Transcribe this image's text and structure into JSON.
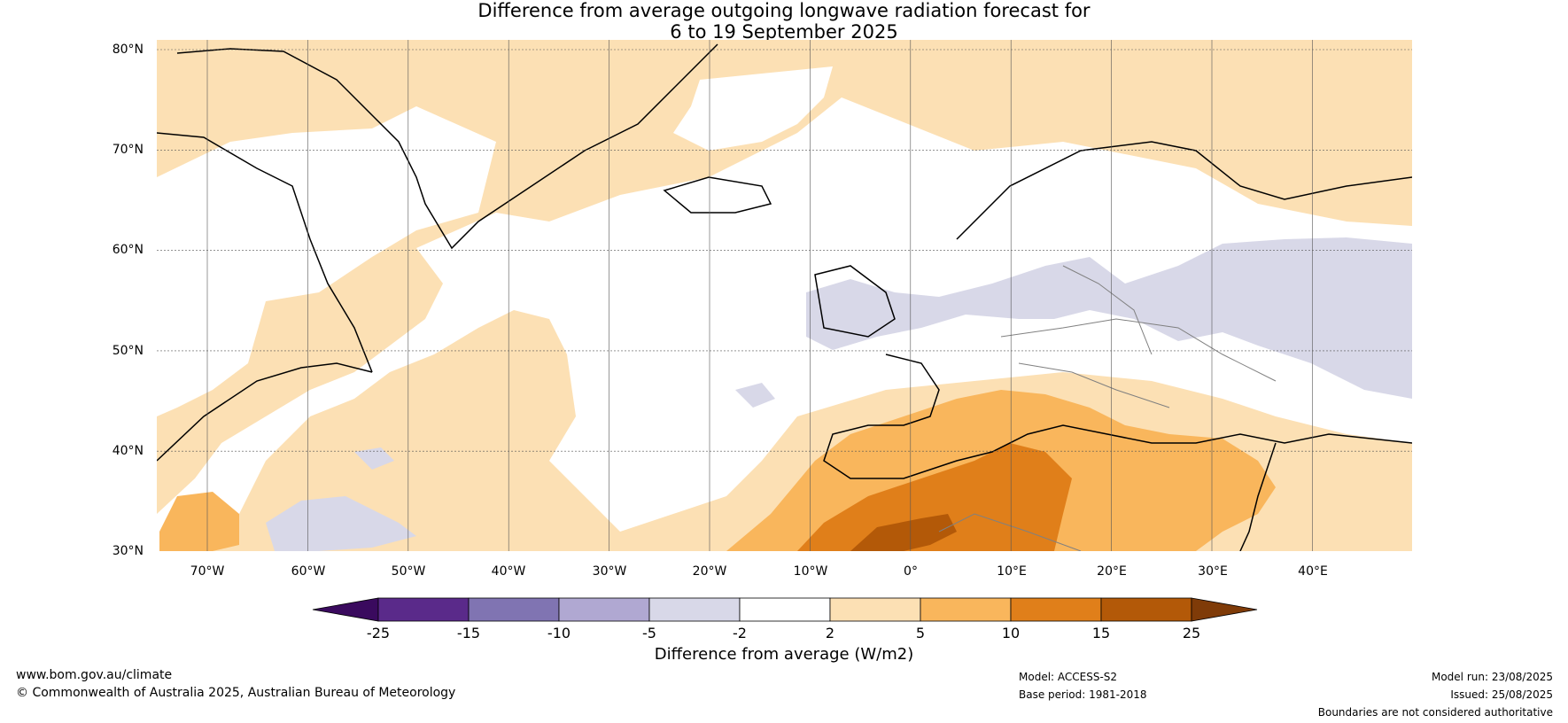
{
  "title_line1": "Difference from average outgoing longwave radiation forecast for",
  "title_line2": "6 to 19 September 2025",
  "lat_labels": [
    "80°N",
    "70°N",
    "60°N",
    "50°N",
    "40°N",
    "30°N"
  ],
  "lon_labels": [
    "70°W",
    "60°W",
    "50°W",
    "40°W",
    "30°W",
    "20°W",
    "10°W",
    "0°",
    "10°E",
    "20°E",
    "30°E",
    "40°E"
  ],
  "colorbar": {
    "ticks": [
      "-25",
      "-15",
      "-10",
      "-5",
      "-2",
      "2",
      "5",
      "10",
      "15",
      "25"
    ],
    "colors": [
      "#3a0a5e",
      "#5a2a8a",
      "#8074b2",
      "#b0a8d2",
      "#d8d8e8",
      "#ffffff",
      "#fce0b4",
      "#f9b65c",
      "#e07f1a",
      "#b35908",
      "#7f3b08"
    ],
    "label": "Difference from average (W/m2)"
  },
  "footer": {
    "url": "www.bom.gov.au/climate",
    "copyright": "© Commonwealth of Australia 2025, Australian Bureau of Meteorology",
    "model": "Model: ACCESS-S2",
    "base_period": "Base period: 1981-2018",
    "model_run": "Model run: 23/08/2025",
    "issued": "Issued: 25/08/2025",
    "disclaimer": "Boundaries are not considered authoritative"
  }
}
